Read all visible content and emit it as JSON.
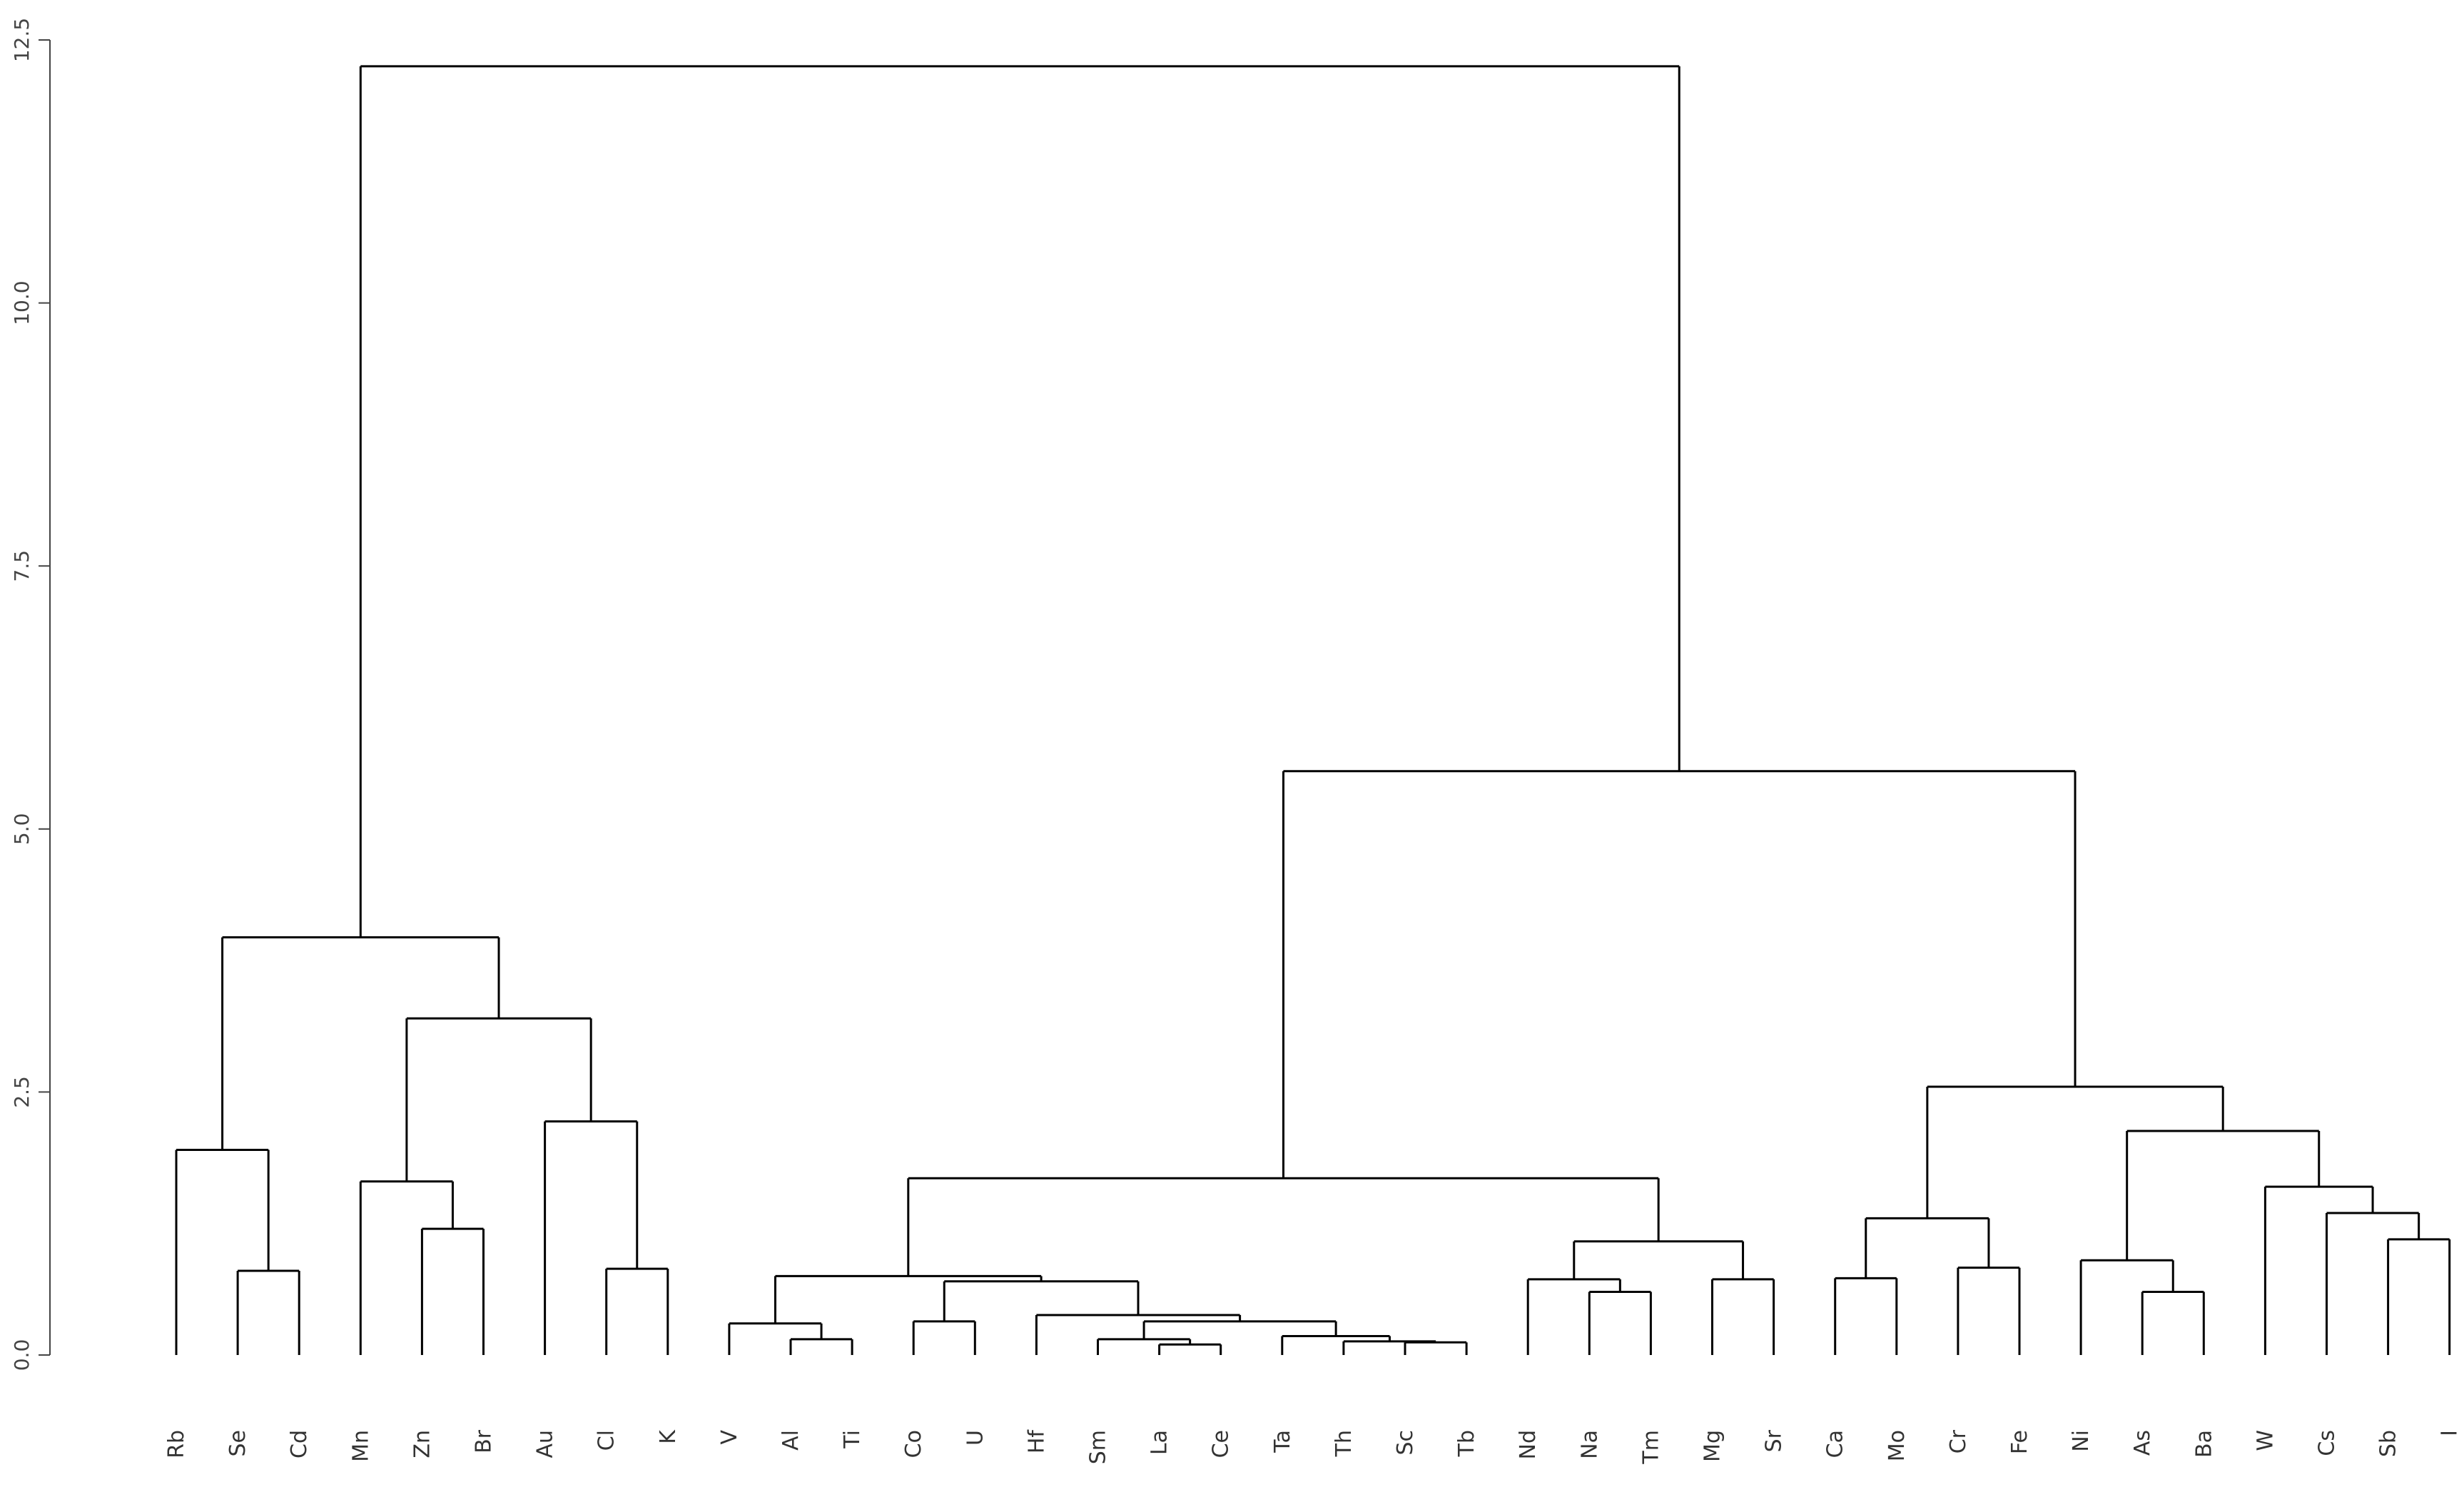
{
  "chart_data": {
    "type": "dendrogram",
    "title": "",
    "xlabel": "",
    "ylabel": "",
    "ylim": [
      0,
      12.5
    ],
    "yticks": [
      0.0,
      2.5,
      5.0,
      7.5,
      10.0,
      12.5
    ],
    "ytick_labels": [
      "0.0",
      "2.5",
      "5.0",
      "7.5",
      "10.0",
      "12.5"
    ],
    "leaves": [
      "Rb",
      "Se",
      "Cd",
      "Mn",
      "Zn",
      "Br",
      "Au",
      "Cl",
      "K",
      "V",
      "Al",
      "Ti",
      "Co",
      "U",
      "Hf",
      "Sm",
      "La",
      "Ce",
      "Ta",
      "Th",
      "Sc",
      "Tb",
      "Nd",
      "Na",
      "Tm",
      "Mg",
      "Sr",
      "Ca",
      "Mo",
      "Cr",
      "Fe",
      "Ni",
      "As",
      "Ba",
      "W",
      "Cs",
      "Sb",
      "I"
    ],
    "tree": {
      "h": 12.25,
      "c": [
        {
          "h": 3.97,
          "c": [
            {
              "h": 1.95,
              "c": [
                "Rb",
                {
                  "h": 0.8,
                  "c": [
                    "Se",
                    "Cd"
                  ]
                }
              ]
            },
            {
              "h": 3.2,
              "c": [
                {
                  "h": 1.65,
                  "c": [
                    "Mn",
                    {
                      "h": 1.2,
                      "c": [
                        "Zn",
                        "Br"
                      ]
                    }
                  ]
                },
                {
                  "h": 2.22,
                  "c": [
                    "Au",
                    {
                      "h": 0.82,
                      "c": [
                        "Cl",
                        "K"
                      ]
                    }
                  ]
                }
              ]
            }
          ]
        },
        {
          "h": 5.55,
          "c": [
            {
              "h": 1.68,
              "c": [
                {
                  "h": 0.75,
                  "c": [
                    {
                      "h": 0.3,
                      "c": [
                        "V",
                        {
                          "h": 0.15,
                          "c": [
                            "Al",
                            "Ti"
                          ]
                        }
                      ]
                    },
                    {
                      "h": 0.7,
                      "c": [
                        {
                          "h": 0.32,
                          "c": [
                            "Co",
                            "U"
                          ]
                        },
                        {
                          "h": 0.38,
                          "c": [
                            "Hf",
                            {
                              "h": 0.32,
                              "c": [
                                {
                                  "h": 0.15,
                                  "c": [
                                    "Sm",
                                    {
                                      "h": 0.1,
                                      "c": [
                                        "La",
                                        "Ce"
                                      ]
                                    }
                                  ]
                                },
                                {
                                  "h": 0.18,
                                  "c": [
                                    "Ta",
                                    {
                                      "h": 0.13,
                                      "c": [
                                        "Th",
                                        {
                                          "h": 0.12,
                                          "c": [
                                            "Sc",
                                            "Tb"
                                          ]
                                        }
                                      ]
                                    }
                                  ]
                                }
                              ]
                            }
                          ]
                        }
                      ]
                    }
                  ]
                },
                {
                  "h": 1.08,
                  "c": [
                    {
                      "h": 0.72,
                      "c": [
                        "Nd",
                        {
                          "h": 0.6,
                          "c": [
                            "Na",
                            "Tm"
                          ]
                        }
                      ]
                    },
                    {
                      "h": 0.72,
                      "c": [
                        "Mg",
                        "Sr"
                      ]
                    }
                  ]
                }
              ]
            },
            {
              "h": 2.55,
              "c": [
                {
                  "h": 1.3,
                  "c": [
                    {
                      "h": 0.73,
                      "c": [
                        "Ca",
                        "Mo"
                      ]
                    },
                    {
                      "h": 0.83,
                      "c": [
                        "Cr",
                        "Fe"
                      ]
                    }
                  ]
                },
                {
                  "h": 2.13,
                  "c": [
                    {
                      "h": 0.9,
                      "c": [
                        "Ni",
                        {
                          "h": 0.6,
                          "c": [
                            "As",
                            "Ba"
                          ]
                        }
                      ]
                    },
                    {
                      "h": 1.6,
                      "c": [
                        "W",
                        {
                          "h": 1.35,
                          "c": [
                            "Cs",
                            {
                              "h": 1.1,
                              "c": [
                                "Sb",
                                "I"
                              ]
                            }
                          ]
                        }
                      ]
                    }
                  ]
                }
              ]
            }
          ]
        }
      ]
    }
  }
}
